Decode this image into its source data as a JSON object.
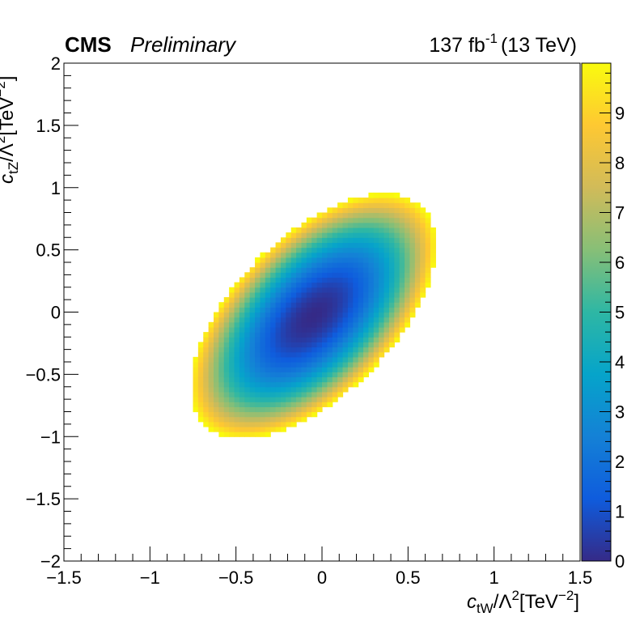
{
  "chart_data": {
    "type": "heatmap",
    "experiment": "CMS",
    "status": "Preliminary",
    "lumi": {
      "value": "137 fb",
      "exponent": "-1",
      "energy": "(13 TeV)"
    },
    "xlabel": {
      "main": "c",
      "sub": "tW",
      "tail": "/Λ",
      "sup": "2",
      "unit": "[TeV",
      "unit_sup": "−2",
      "unit_close": "]"
    },
    "ylabel": {
      "main": "c",
      "sub": "tZ",
      "tail": "/Λ",
      "sup": "2",
      "unit": "[TeV",
      "unit_sup": "−2",
      "unit_close": "]"
    },
    "xlim": [
      -1.5,
      1.5
    ],
    "ylim": [
      -2,
      2
    ],
    "zlim": [
      0,
      10
    ],
    "x_ticks": [
      -1.5,
      -1,
      -0.5,
      0,
      0.5,
      1,
      1.5
    ],
    "x_tick_labels": [
      "−1.5",
      "−1",
      "−0.5",
      "0",
      "0.5",
      "1",
      "1.5"
    ],
    "y_ticks": [
      -2,
      -1.5,
      -1,
      -0.5,
      0,
      0.5,
      1,
      1.5,
      2
    ],
    "y_tick_labels": [
      "−2",
      "−1.5",
      "−1",
      "−0.5",
      "0",
      "0.5",
      "1",
      "1.5",
      "2"
    ],
    "z_ticks": [
      0,
      1,
      2,
      3,
      4,
      5,
      6,
      7,
      8,
      9
    ],
    "z_tick_labels": [
      "0",
      "1",
      "2",
      "3",
      "4",
      "5",
      "6",
      "7",
      "8",
      "9"
    ],
    "colormap": [
      "#352a87",
      "#0f5cdd",
      "#1481d6",
      "#06a4ca",
      "#2eb7a4",
      "#87bf77",
      "#d1bb59",
      "#fec832",
      "#f9fb0e"
    ],
    "surface": {
      "minimum": [
        -0.05,
        -0.03
      ],
      "cxx": 29.7,
      "cyy": 15.7,
      "cxy": -25.0,
      "z_max_drawn": 10,
      "bin_width": [
        0.03,
        0.04
      ]
    },
    "grid": false
  }
}
